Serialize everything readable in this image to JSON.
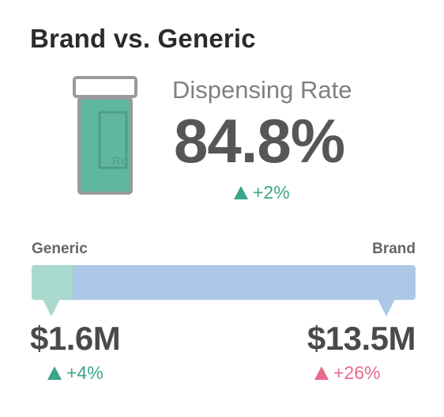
{
  "title": "Brand vs. Generic",
  "metric": {
    "label": "Dispensing Rate",
    "value": "84.8%",
    "change": "+2%",
    "direction": "up"
  },
  "bar": {
    "left_label": "Generic",
    "right_label": "Brand",
    "generic_share_of_bar": 0.106
  },
  "generic": {
    "value": "$1.6M",
    "change": "+4%",
    "direction": "up"
  },
  "brand": {
    "value": "$13.5M",
    "change": "+26%",
    "direction": "up"
  },
  "icon": {
    "name": "prescription-bottle-icon",
    "label_text": "Rx"
  },
  "colors": {
    "generic": "#a9d8cc",
    "brand": "#adc8e6",
    "positive": "#3aa588",
    "negative": "#e86a8b",
    "bottle_fill": "#5fb7a0",
    "bottle_outline": "#9a9a9a"
  }
}
